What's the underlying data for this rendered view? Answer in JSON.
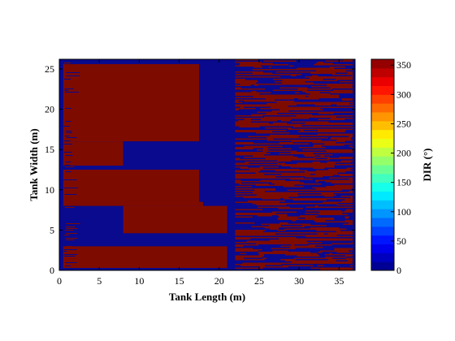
{
  "chart_data": {
    "type": "heatmap",
    "title": "",
    "xlabel": "Tank Length (m)",
    "ylabel": "Tank Width (m)",
    "xlim": [
      0,
      37
    ],
    "ylim": [
      0,
      26.2
    ],
    "x_ticks": [
      "0",
      "5",
      "10",
      "15",
      "20",
      "25",
      "30",
      "35"
    ],
    "y_ticks": [
      "0",
      "5",
      "10",
      "15",
      "20",
      "25"
    ],
    "colorbar": {
      "label": "DIR (°)",
      "range": [
        0,
        360
      ],
      "ticks": [
        "0",
        "50",
        "100",
        "150",
        "200",
        "250",
        "300",
        "350"
      ],
      "colormap": "jet"
    },
    "colors": {
      "low_direction": "#0a0a8e",
      "high_direction": "#7e0b00"
    },
    "field_regions": [
      {
        "x": [
          0.5,
          17.5
        ],
        "y": [
          16.0,
          25.6
        ],
        "dir_deg": 355
      },
      {
        "x": [
          0.5,
          8.0
        ],
        "y": [
          13.0,
          16.0
        ],
        "dir_deg": 355
      },
      {
        "x": [
          0.5,
          18.0
        ],
        "y": [
          8.0,
          12.5
        ],
        "dir_deg": 355
      },
      {
        "x": [
          8.0,
          21.0
        ],
        "y": [
          4.6,
          8.0
        ],
        "dir_deg": 355
      },
      {
        "x": [
          0.5,
          21.0
        ],
        "y": [
          0.3,
          3.0
        ],
        "dir_deg": 355
      },
      {
        "x": [
          17.5,
          21.5
        ],
        "y": [
          8.5,
          26.2
        ],
        "dir_deg": 5
      },
      {
        "x": [
          8.0,
          22.0
        ],
        "y": [
          13.0,
          16.0
        ],
        "dir_deg": 5
      },
      {
        "x": [
          0.5,
          21.0
        ],
        "y": [
          3.0,
          4.6
        ],
        "dir_deg": 5
      }
    ],
    "banded_region": {
      "x": [
        22.0,
        36.7
      ],
      "y": [
        0.0,
        26.2
      ],
      "dir_deg": [
        0,
        359
      ],
      "pattern": "alternating horizontal streaks"
    }
  }
}
